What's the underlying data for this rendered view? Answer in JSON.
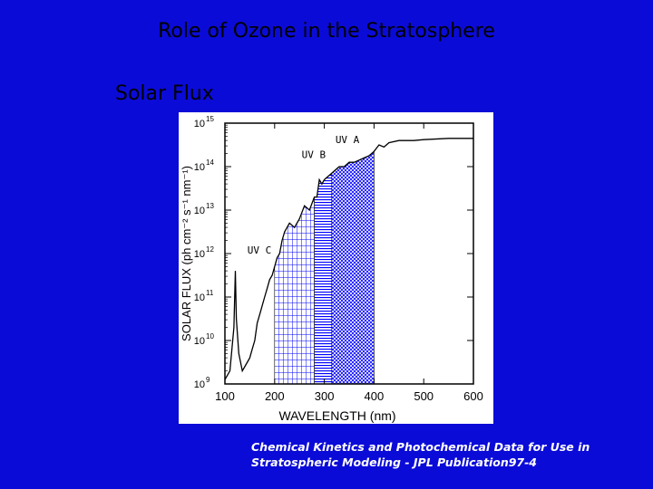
{
  "slide": {
    "title": "Role of Ozone in the Stratosphere",
    "subtitle": "Solar Flux",
    "citation_line1": "Chemical Kinetics and Photochemical Data for Use in",
    "citation_line2": "Stratospheric Modeling - JPL Publication97-4"
  },
  "colors": {
    "background": "#0b0bd8",
    "figure_background": "#ffffff",
    "ink": "#000000"
  },
  "chart_data": {
    "type": "area",
    "xlabel": "WAVELENGTH (nm)",
    "ylabel": "SOLAR FLUX (ph cm⁻² s⁻¹ nm⁻¹)",
    "log_y": true,
    "xlim": [
      100,
      600
    ],
    "ylim": [
      9,
      15
    ],
    "x_ticks": [
      "100",
      "200",
      "300",
      "400",
      "500",
      "600"
    ],
    "y_ticks": [
      {
        "exp": "15",
        "value": 15
      },
      {
        "exp": "14",
        "value": 14
      },
      {
        "exp": "13",
        "value": 13
      },
      {
        "exp": "12",
        "value": 12
      },
      {
        "exp": "11",
        "value": 11
      },
      {
        "exp": "10",
        "value": 10
      },
      {
        "exp": "9",
        "value": 9
      }
    ],
    "tick_base": "10",
    "bands": [
      {
        "name": "UV C",
        "range": [
          200,
          280
        ],
        "hatch": "grid"
      },
      {
        "name": "UV B",
        "range": [
          280,
          315
        ],
        "hatch": "horizontal"
      },
      {
        "name": "UV A",
        "range": [
          315,
          400
        ],
        "hatch": "crosshatch"
      }
    ],
    "series": [
      {
        "x": [
          100,
          110,
          118,
          121,
          123,
          128,
          135,
          145,
          150,
          155,
          160,
          165,
          170,
          175,
          180,
          185,
          190,
          195,
          200,
          205,
          210,
          215,
          220,
          230,
          240,
          250,
          260,
          270,
          280,
          285,
          290,
          295,
          300,
          305,
          310,
          320,
          330,
          340,
          350,
          360,
          370,
          380,
          390,
          395,
          400,
          410,
          420,
          430,
          450,
          480,
          500,
          550,
          600
        ],
        "y": [
          9.1,
          9.3,
          10.3,
          11.6,
          10.5,
          9.7,
          9.3,
          9.5,
          9.6,
          9.8,
          10.0,
          10.4,
          10.6,
          10.8,
          11.0,
          11.2,
          11.4,
          11.5,
          11.7,
          11.9,
          12.0,
          12.3,
          12.5,
          12.7,
          12.6,
          12.8,
          13.1,
          13.0,
          13.3,
          13.3,
          13.7,
          13.6,
          13.7,
          13.75,
          13.8,
          13.9,
          14.0,
          14.0,
          14.1,
          14.1,
          14.15,
          14.2,
          14.25,
          14.3,
          14.35,
          14.5,
          14.45,
          14.55,
          14.6,
          14.6,
          14.62,
          14.65,
          14.65
        ]
      }
    ]
  }
}
